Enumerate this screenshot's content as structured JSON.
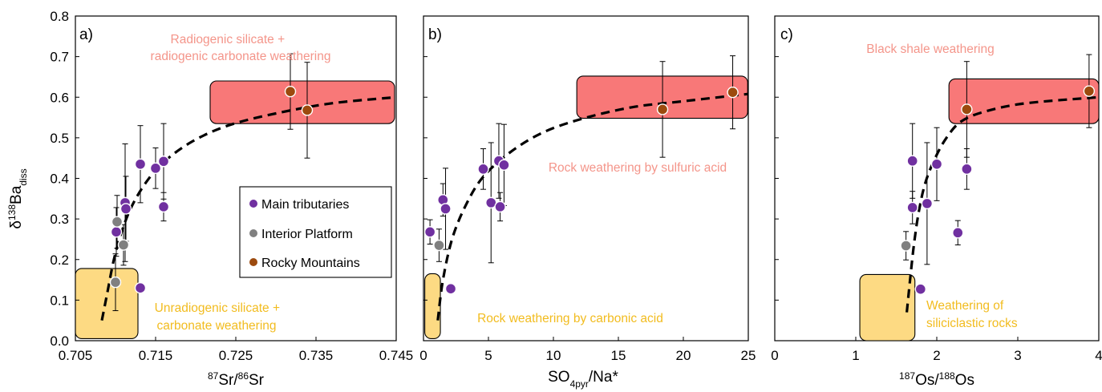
{
  "figure": {
    "y_axis_label": {
      "prefix": "δ",
      "sup": "138",
      "base": "Ba",
      "sub": "diss"
    },
    "legend": [
      {
        "label": "Main tributaries",
        "color": "#7030a0"
      },
      {
        "label": "Interior Platform",
        "color": "#808080"
      },
      {
        "label": "Rocky Mountains",
        "color": "#9c4a0e"
      }
    ]
  },
  "colors": {
    "main_tributaries": "#7030a0",
    "interior_platform": "#808080",
    "rocky_mountains": "#9c4a0e",
    "red_box": "#f87878",
    "yellow_box": "#fdda83",
    "red_text": "#f4958a",
    "yellow_text": "#f2bc1f"
  },
  "chart_data": [
    {
      "type": "scatter",
      "panel_label": "a)",
      "xlabel": {
        "sup1": "87",
        "mid": "Sr/",
        "sup2": "86",
        "end": "Sr"
      },
      "xlim": [
        0.705,
        0.745
      ],
      "ylim": [
        0,
        0.8
      ],
      "xticks": [
        "0.705",
        "0.715",
        "0.725",
        "0.735",
        "0.745"
      ],
      "xtick_values": [
        0.705,
        0.715,
        0.725,
        0.735,
        0.745
      ],
      "yticks": [
        "0.0",
        "0.1",
        "0.2",
        "0.3",
        "0.4",
        "0.5",
        "0.6",
        "0.7",
        "0.8"
      ],
      "grid": false,
      "legend_placement": "center-right",
      "annotations": [
        {
          "lines": [
            "Radiogenic silicate  +",
            "radiogenic carbonate weathering"
          ],
          "color": "red"
        },
        {
          "lines": [
            "Unradiogenic silicate +",
            "carbonate weathering"
          ],
          "color": "yellow"
        }
      ],
      "regions": [
        {
          "color": "red",
          "x": [
            0.7218,
            0.7448
          ],
          "y": [
            0.535,
            0.64
          ]
        },
        {
          "color": "yellow",
          "x": [
            0.705,
            0.7128
          ],
          "y": [
            0.005,
            0.178
          ]
        }
      ],
      "trend_curve": [
        [
          0.7083,
          0.05
        ],
        [
          0.709,
          0.12
        ],
        [
          0.7098,
          0.2
        ],
        [
          0.7108,
          0.27
        ],
        [
          0.712,
          0.33
        ],
        [
          0.7138,
          0.39
        ],
        [
          0.716,
          0.44
        ],
        [
          0.7195,
          0.49
        ],
        [
          0.724,
          0.53
        ],
        [
          0.73,
          0.56
        ],
        [
          0.737,
          0.585
        ],
        [
          0.745,
          0.6
        ]
      ],
      "series": [
        {
          "name": "Main tributaries",
          "group": "main_tributaries",
          "points": [
            {
              "x": 0.7101,
              "y": 0.268,
              "err": 0.06
            },
            {
              "x": 0.7112,
              "y": 0.34,
              "err": 0.145
            },
            {
              "x": 0.7113,
              "y": 0.325,
              "err": 0.08
            },
            {
              "x": 0.7131,
              "y": 0.435,
              "err": 0.095
            },
            {
              "x": 0.715,
              "y": 0.425,
              "err": 0.05
            },
            {
              "x": 0.716,
              "y": 0.442,
              "err": 0.093
            },
            {
              "x": 0.716,
              "y": 0.33,
              "err": 0.035
            },
            {
              "x": 0.7131,
              "y": 0.13,
              "err": 0
            }
          ]
        },
        {
          "name": "Interior Platform",
          "group": "interior_platform",
          "points": [
            {
              "x": 0.7102,
              "y": 0.293,
              "err": 0.065
            },
            {
              "x": 0.711,
              "y": 0.236,
              "err": 0.05
            },
            {
              "x": 0.71,
              "y": 0.144,
              "err": 0.07
            }
          ]
        },
        {
          "name": "Rocky Mountains",
          "group": "rocky_mountains",
          "points": [
            {
              "x": 0.7318,
              "y": 0.614,
              "err": 0.093
            },
            {
              "x": 0.7339,
              "y": 0.568,
              "err": 0.118
            }
          ]
        }
      ]
    },
    {
      "type": "scatter",
      "panel_label": "b)",
      "xlabel": {
        "start": "SO",
        "sub": "4pyr",
        "end": "/Na*"
      },
      "xlim": [
        0,
        25
      ],
      "ylim": [
        0,
        0.8
      ],
      "xticks": [
        "0",
        "5",
        "10",
        "15",
        "20",
        "25"
      ],
      "xtick_values": [
        0,
        5,
        10,
        15,
        20,
        25
      ],
      "grid": false,
      "annotations": [
        {
          "lines": [
            "Rock weathering by sulfuric acid"
          ],
          "color": "red"
        },
        {
          "lines": [
            "Rock weathering by carbonic acid"
          ],
          "color": "yellow"
        }
      ],
      "regions": [
        {
          "color": "red",
          "x": [
            11.8,
            24.95
          ],
          "y": [
            0.548,
            0.652
          ]
        },
        {
          "color": "yellow",
          "x": [
            0.1,
            1.3
          ],
          "y": [
            0.005,
            0.165
          ]
        }
      ],
      "trend_curve": [
        [
          1.1,
          0.05
        ],
        [
          1.5,
          0.15
        ],
        [
          2.2,
          0.25
        ],
        [
          3.2,
          0.33
        ],
        [
          4.5,
          0.4
        ],
        [
          6.5,
          0.46
        ],
        [
          9,
          0.51
        ],
        [
          12,
          0.545
        ],
        [
          16,
          0.575
        ],
        [
          20,
          0.59
        ],
        [
          25,
          0.608
        ]
      ],
      "series": [
        {
          "name": "Main tributaries",
          "group": "main_tributaries",
          "points": [
            {
              "x": 0.5,
              "y": 0.268,
              "err": 0.03
            },
            {
              "x": 1.5,
              "y": 0.347,
              "err": 0.04
            },
            {
              "x": 1.7,
              "y": 0.325,
              "err": 0.1
            },
            {
              "x": 2.1,
              "y": 0.128,
              "err": 0
            },
            {
              "x": 4.6,
              "y": 0.423,
              "err": 0.05
            },
            {
              "x": 5.2,
              "y": 0.34,
              "err": 0.148
            },
            {
              "x": 5.8,
              "y": 0.443,
              "err": 0.092
            },
            {
              "x": 5.9,
              "y": 0.33,
              "err": 0.035
            },
            {
              "x": 6.2,
              "y": 0.433,
              "err": 0.1
            }
          ]
        },
        {
          "name": "Interior Platform",
          "group": "interior_platform",
          "points": [
            {
              "x": 1.2,
              "y": 0.235,
              "err": 0.04
            }
          ]
        },
        {
          "name": "Rocky Mountains",
          "group": "rocky_mountains",
          "points": [
            {
              "x": 18.4,
              "y": 0.57,
              "err": 0.118
            },
            {
              "x": 23.8,
              "y": 0.612,
              "err": 0.09
            }
          ]
        }
      ]
    },
    {
      "type": "scatter",
      "panel_label": "c)",
      "xlabel": {
        "sup1": "187",
        "mid": "Os/",
        "sup2": "188",
        "end": "Os"
      },
      "xlim": [
        0,
        4
      ],
      "ylim": [
        0,
        0.8
      ],
      "xticks": [
        "0",
        "1",
        "2",
        "3",
        "4"
      ],
      "xtick_values": [
        0,
        1,
        2,
        3,
        4
      ],
      "grid": false,
      "annotations": [
        {
          "lines": [
            "Black shale weathering"
          ],
          "color": "red"
        },
        {
          "lines": [
            "Weathering of",
            "siliciclastic rocks"
          ],
          "color": "yellow"
        }
      ],
      "regions": [
        {
          "color": "red",
          "x": [
            2.15,
            4.0
          ],
          "y": [
            0.535,
            0.645
          ]
        },
        {
          "color": "yellow",
          "x": [
            1.05,
            1.73
          ],
          "y": [
            0.0,
            0.163
          ]
        }
      ],
      "trend_curve": [
        [
          1.63,
          0.07
        ],
        [
          1.67,
          0.15
        ],
        [
          1.72,
          0.24
        ],
        [
          1.78,
          0.32
        ],
        [
          1.86,
          0.39
        ],
        [
          1.98,
          0.45
        ],
        [
          2.12,
          0.5
        ],
        [
          2.3,
          0.54
        ],
        [
          2.6,
          0.565
        ],
        [
          3.1,
          0.585
        ],
        [
          4.0,
          0.6
        ]
      ],
      "series": [
        {
          "name": "Main tributaries",
          "group": "main_tributaries",
          "points": [
            {
              "x": 1.7,
              "y": 0.443,
              "err": 0.092
            },
            {
              "x": 1.7,
              "y": 0.328,
              "err": 0.04
            },
            {
              "x": 1.8,
              "y": 0.127,
              "err": 0
            },
            {
              "x": 1.88,
              "y": 0.338,
              "err": 0.15
            },
            {
              "x": 2.0,
              "y": 0.435,
              "err": 0.09
            },
            {
              "x": 2.26,
              "y": 0.266,
              "err": 0.03
            },
            {
              "x": 2.37,
              "y": 0.423,
              "err": 0.05
            }
          ]
        },
        {
          "name": "Interior Platform",
          "group": "interior_platform",
          "points": [
            {
              "x": 1.62,
              "y": 0.234,
              "err": 0.035
            }
          ]
        },
        {
          "name": "Rocky Mountains",
          "group": "rocky_mountains",
          "points": [
            {
              "x": 2.37,
              "y": 0.57,
              "err": 0.118
            },
            {
              "x": 3.88,
              "y": 0.615,
              "err": 0.09
            }
          ]
        }
      ]
    }
  ]
}
